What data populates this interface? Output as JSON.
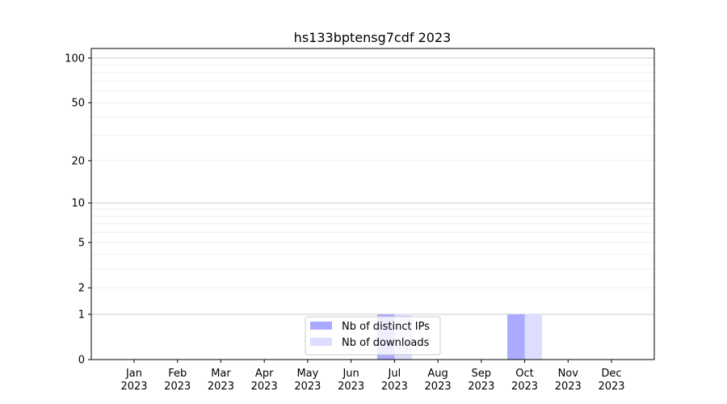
{
  "chart_data": {
    "type": "bar",
    "title": "hs133bptensg7cdf 2023",
    "xlabel": "",
    "ylabel": "",
    "yscale": "log(1+y)",
    "ylim": [
      0,
      116
    ],
    "yticks": [
      0,
      1,
      2,
      5,
      10,
      20,
      50,
      100
    ],
    "ytick_labels": [
      "0",
      "1",
      "2",
      "5",
      "10",
      "20",
      "50",
      "100"
    ],
    "grid": true,
    "legend_position": "lower-center",
    "categories": [
      "Jan\n2023",
      "Feb\n2023",
      "Mar\n2023",
      "Apr\n2023",
      "May\n2023",
      "Jun\n2023",
      "Jul\n2023",
      "Aug\n2023",
      "Sep\n2023",
      "Oct\n2023",
      "Nov\n2023",
      "Dec\n2023"
    ],
    "series": [
      {
        "name": "Nb of distinct IPs",
        "color": "#aaaaff",
        "values": [
          0,
          0,
          0,
          0,
          0,
          0,
          1,
          0,
          0,
          1,
          0,
          0
        ]
      },
      {
        "name": "Nb of downloads",
        "color": "#ddddff",
        "values": [
          0,
          0,
          0,
          0,
          0,
          0,
          1,
          0,
          0,
          1,
          0,
          0
        ]
      }
    ]
  }
}
